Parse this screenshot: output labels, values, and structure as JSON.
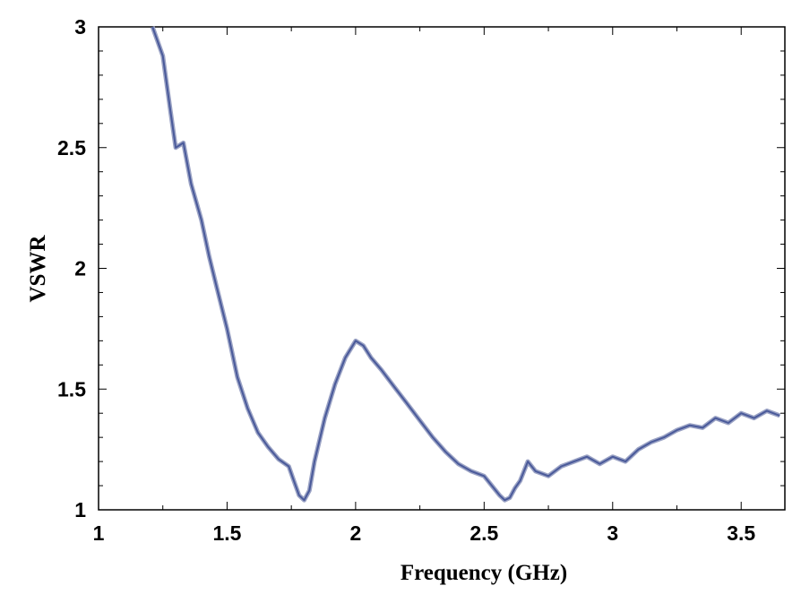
{
  "chart_data": {
    "type": "line",
    "title": "",
    "xlabel": "Frequency (GHz)",
    "ylabel": "VSWR",
    "xlim": [
      1,
      3.67
    ],
    "ylim": [
      1,
      3
    ],
    "x_ticks": [
      1,
      1.5,
      2,
      2.5,
      3,
      3.5
    ],
    "x_tick_labels": [
      "1",
      "1.5",
      "2",
      "2.5",
      "3",
      "3.5"
    ],
    "y_ticks": [
      1,
      1.5,
      2,
      2.5,
      3
    ],
    "y_tick_labels": [
      "1",
      "1.5",
      "2",
      "2.5",
      "3"
    ],
    "grid": false,
    "legend": "none",
    "series": [
      {
        "color": "#4a5a9a",
        "x": [
          1.21,
          1.25,
          1.28,
          1.3,
          1.33,
          1.36,
          1.4,
          1.43,
          1.46,
          1.5,
          1.54,
          1.58,
          1.62,
          1.66,
          1.7,
          1.74,
          1.76,
          1.78,
          1.8,
          1.82,
          1.84,
          1.88,
          1.92,
          1.96,
          2.0,
          2.03,
          2.06,
          2.1,
          2.15,
          2.2,
          2.25,
          2.3,
          2.35,
          2.4,
          2.45,
          2.5,
          2.53,
          2.56,
          2.58,
          2.6,
          2.62,
          2.64,
          2.67,
          2.7,
          2.75,
          2.8,
          2.85,
          2.9,
          2.95,
          3.0,
          3.05,
          3.1,
          3.15,
          3.2,
          3.25,
          3.3,
          3.35,
          3.4,
          3.45,
          3.5,
          3.55,
          3.6,
          3.65
        ],
        "y": [
          3.0,
          2.88,
          2.65,
          2.5,
          2.52,
          2.35,
          2.2,
          2.05,
          1.92,
          1.75,
          1.55,
          1.42,
          1.32,
          1.26,
          1.21,
          1.18,
          1.12,
          1.06,
          1.04,
          1.08,
          1.2,
          1.38,
          1.52,
          1.63,
          1.7,
          1.68,
          1.63,
          1.58,
          1.51,
          1.44,
          1.37,
          1.3,
          1.24,
          1.19,
          1.16,
          1.14,
          1.1,
          1.06,
          1.04,
          1.05,
          1.09,
          1.12,
          1.2,
          1.16,
          1.14,
          1.18,
          1.2,
          1.22,
          1.19,
          1.22,
          1.2,
          1.25,
          1.28,
          1.3,
          1.33,
          1.35,
          1.34,
          1.38,
          1.36,
          1.4,
          1.38,
          1.41,
          1.39
        ]
      }
    ]
  }
}
